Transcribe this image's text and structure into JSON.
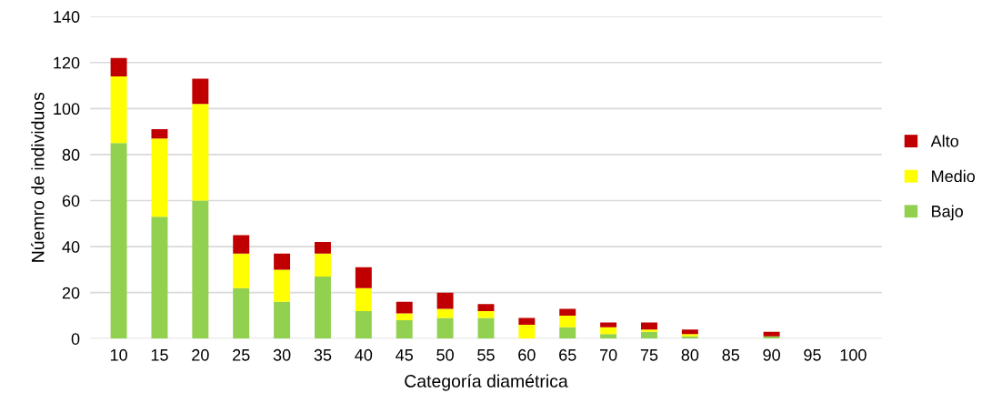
{
  "chart_data": {
    "type": "bar",
    "stacked": true,
    "xlabel": "Categoría diamétrica",
    "ylabel": "Núemro de individuos",
    "categories": [
      "10",
      "15",
      "20",
      "25",
      "30",
      "35",
      "40",
      "45",
      "50",
      "55",
      "60",
      "65",
      "70",
      "75",
      "80",
      "85",
      "90",
      "95",
      "100"
    ],
    "series": [
      {
        "name": "Bajo",
        "color": "#92d050",
        "values": [
          85,
          53,
          60,
          22,
          16,
          27,
          12,
          8,
          9,
          9,
          0,
          5,
          2,
          3,
          1,
          0,
          1,
          0,
          0
        ]
      },
      {
        "name": "Medio",
        "color": "#ffff00",
        "values": [
          29,
          34,
          42,
          15,
          14,
          10,
          10,
          3,
          4,
          3,
          6,
          5,
          3,
          1,
          1,
          0,
          0,
          0,
          0
        ]
      },
      {
        "name": "Alto",
        "color": "#c00000",
        "values": [
          8,
          4,
          11,
          8,
          7,
          5,
          9,
          5,
          7,
          3,
          3,
          3,
          2,
          3,
          2,
          0,
          2,
          0,
          0
        ]
      }
    ],
    "ylim": [
      0,
      140
    ],
    "yticks": [
      0,
      20,
      40,
      60,
      80,
      100,
      120,
      140
    ],
    "grid": "y",
    "legend": "right"
  }
}
